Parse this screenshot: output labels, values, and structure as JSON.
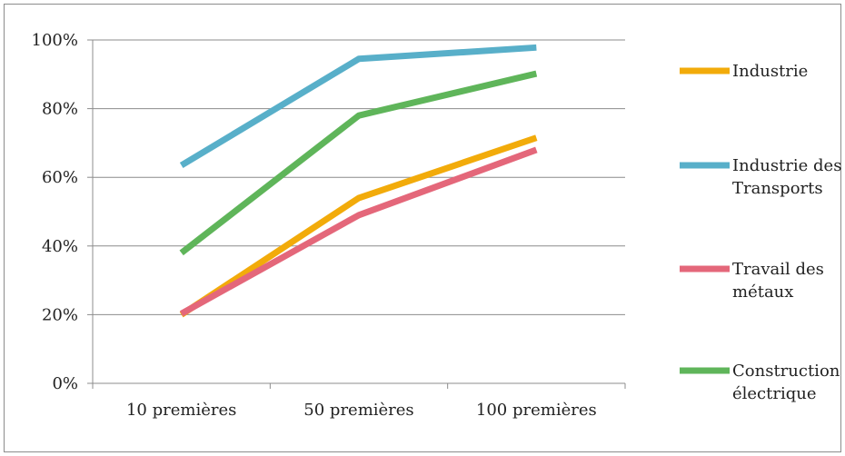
{
  "chart_data": {
    "type": "line",
    "categories": [
      "10 premières",
      "50 premières",
      "100 premières"
    ],
    "ylim": [
      0,
      1
    ],
    "yticks": [
      "0%",
      "20%",
      "40%",
      "60%",
      "80%",
      "100%"
    ],
    "grid": true,
    "legend_position": "right",
    "series": [
      {
        "name": "Industrie",
        "lines": [
          "Industrie"
        ],
        "color": "#f2ab0a",
        "values": [
          0.2,
          0.54,
          0.715
        ]
      },
      {
        "name": "Industrie des Transports",
        "lines": [
          "Industrie des",
          "Transports"
        ],
        "color": "#58afc9",
        "values": [
          0.635,
          0.945,
          0.978
        ]
      },
      {
        "name": "Travail des métaux",
        "lines": [
          "Travail des",
          "métaux"
        ],
        "color": "#e4677a",
        "values": [
          0.203,
          0.49,
          0.68
        ]
      },
      {
        "name": "Construction électrique",
        "lines": [
          "Construction",
          "électrique"
        ],
        "color": "#5fb55a",
        "values": [
          0.38,
          0.78,
          0.902
        ]
      }
    ]
  }
}
